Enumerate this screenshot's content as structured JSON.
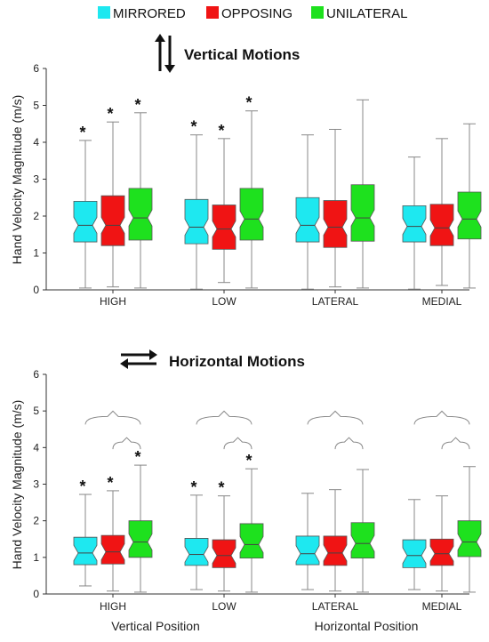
{
  "legend": [
    {
      "label": "MIRRORED",
      "color": "#1ee8f0"
    },
    {
      "label": "OPPOSING",
      "color": "#f01414"
    },
    {
      "label": "UNILATERAL",
      "color": "#1ee11e"
    }
  ],
  "x_group_labels": {
    "left": "Vertical Position",
    "right": "Horizontal Position"
  },
  "chart_data": [
    {
      "type": "box",
      "title": "Vertical Motions",
      "title_icon": "vertical-arrows-icon",
      "ylabel": "Hand Velocity Magnitude (m/s)",
      "ylim": [
        0,
        6
      ],
      "yticks": [
        "0",
        "1",
        "2",
        "3",
        "4",
        "5",
        "6"
      ],
      "categories": [
        "HIGH",
        "LOW",
        "LATERAL",
        "MEDIAL"
      ],
      "series": [
        {
          "name": "MIRRORED",
          "color": "#1ee8f0",
          "boxes": [
            {
              "min": 0.05,
              "q1": 1.3,
              "median": 1.75,
              "q3": 2.4,
              "max": 4.05,
              "star": true
            },
            {
              "min": 0.02,
              "q1": 1.25,
              "median": 1.7,
              "q3": 2.45,
              "max": 4.2,
              "star": true
            },
            {
              "min": 0.02,
              "q1": 1.3,
              "median": 1.75,
              "q3": 2.5,
              "max": 4.2,
              "star": false
            },
            {
              "min": 0.02,
              "q1": 1.3,
              "median": 1.72,
              "q3": 2.28,
              "max": 3.6,
              "star": false
            }
          ]
        },
        {
          "name": "OPPOSING",
          "color": "#f01414",
          "boxes": [
            {
              "min": 0.08,
              "q1": 1.2,
              "median": 1.75,
              "q3": 2.55,
              "max": 4.55,
              "star": true
            },
            {
              "min": 0.2,
              "q1": 1.1,
              "median": 1.65,
              "q3": 2.3,
              "max": 4.1,
              "star": true
            },
            {
              "min": 0.08,
              "q1": 1.15,
              "median": 1.7,
              "q3": 2.42,
              "max": 4.35,
              "star": false
            },
            {
              "min": 0.12,
              "q1": 1.2,
              "median": 1.68,
              "q3": 2.32,
              "max": 4.1,
              "star": false
            }
          ]
        },
        {
          "name": "UNILATERAL",
          "color": "#1ee11e",
          "boxes": [
            {
              "min": 0.05,
              "q1": 1.35,
              "median": 1.95,
              "q3": 2.75,
              "max": 4.8,
              "star": true
            },
            {
              "min": 0.05,
              "q1": 1.35,
              "median": 1.92,
              "q3": 2.75,
              "max": 4.85,
              "star": true
            },
            {
              "min": 0.05,
              "q1": 1.32,
              "median": 1.95,
              "q3": 2.85,
              "max": 5.15,
              "star": false
            },
            {
              "min": 0.05,
              "q1": 1.38,
              "median": 1.92,
              "q3": 2.65,
              "max": 4.5,
              "star": false
            }
          ]
        }
      ]
    },
    {
      "type": "box",
      "title": "Horizontal Motions",
      "title_icon": "horizontal-arrows-icon",
      "ylabel": "Hand Velocity Magnitude (m/s)",
      "ylim": [
        0,
        6
      ],
      "yticks": [
        "0",
        "1",
        "2",
        "3",
        "4",
        "5",
        "6"
      ],
      "categories": [
        "HIGH",
        "LOW",
        "LATERAL",
        "MEDIAL"
      ],
      "series": [
        {
          "name": "MIRRORED",
          "color": "#1ee8f0",
          "boxes": [
            {
              "min": 0.22,
              "q1": 0.8,
              "median": 1.12,
              "q3": 1.55,
              "max": 2.72,
              "star": true
            },
            {
              "min": 0.12,
              "q1": 0.78,
              "median": 1.08,
              "q3": 1.52,
              "max": 2.7,
              "star": true
            },
            {
              "min": 0.12,
              "q1": 0.8,
              "median": 1.1,
              "q3": 1.58,
              "max": 2.75,
              "star": false
            },
            {
              "min": 0.12,
              "q1": 0.72,
              "median": 1.05,
              "q3": 1.48,
              "max": 2.58,
              "star": false
            }
          ]
        },
        {
          "name": "OPPOSING",
          "color": "#f01414",
          "boxes": [
            {
              "min": 0.08,
              "q1": 0.82,
              "median": 1.15,
              "q3": 1.6,
              "max": 2.82,
              "star": true
            },
            {
              "min": 0.08,
              "q1": 0.72,
              "median": 1.05,
              "q3": 1.48,
              "max": 2.68,
              "star": true
            },
            {
              "min": 0.08,
              "q1": 0.78,
              "median": 1.12,
              "q3": 1.58,
              "max": 2.85,
              "star": false
            },
            {
              "min": 0.08,
              "q1": 0.78,
              "median": 1.1,
              "q3": 1.5,
              "max": 2.68,
              "star": false
            }
          ]
        },
        {
          "name": "UNILATERAL",
          "color": "#1ee11e",
          "boxes": [
            {
              "min": 0.05,
              "q1": 1.0,
              "median": 1.42,
              "q3": 2.0,
              "max": 3.52,
              "star": true
            },
            {
              "min": 0.05,
              "q1": 0.98,
              "median": 1.35,
              "q3": 1.92,
              "max": 3.42,
              "star": true
            },
            {
              "min": 0.05,
              "q1": 0.98,
              "median": 1.38,
              "q3": 1.95,
              "max": 3.4,
              "star": false
            },
            {
              "min": 0.05,
              "q1": 1.02,
              "median": 1.42,
              "q3": 2.0,
              "max": 3.48,
              "star": false
            }
          ]
        }
      ],
      "has_comparison_braces": true
    }
  ]
}
